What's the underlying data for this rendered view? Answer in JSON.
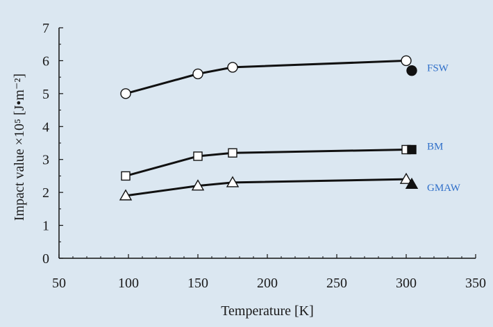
{
  "chart_data": {
    "type": "line",
    "title": "",
    "xlabel": "Temperature [K]",
    "ylabel": "Impact value ×10⁵ [J•m⁻²]",
    "xlim": [
      50,
      350
    ],
    "ylim": [
      0,
      7
    ],
    "xticks": [
      50,
      100,
      150,
      200,
      250,
      300,
      350
    ],
    "yticks": [
      0,
      1,
      2,
      3,
      4,
      5,
      6,
      7
    ],
    "grid": false,
    "colors": {
      "line": "#111111",
      "label": "#2f6fc9",
      "background": "#dbe7f1"
    },
    "series": [
      {
        "name": "FSW",
        "marker": "circle",
        "x": [
          98,
          150,
          175,
          300
        ],
        "y": [
          5.0,
          5.6,
          5.8,
          6.0
        ],
        "filled_point": {
          "x": 304,
          "y": 5.7
        }
      },
      {
        "name": "BM",
        "marker": "square",
        "x": [
          98,
          150,
          175,
          300
        ],
        "y": [
          2.5,
          3.1,
          3.2,
          3.3
        ],
        "filled_point": {
          "x": 304,
          "y": 3.3
        }
      },
      {
        "name": "GMAW",
        "marker": "triangle",
        "x": [
          98,
          150,
          175,
          300
        ],
        "y": [
          1.9,
          2.2,
          2.3,
          2.4
        ],
        "filled_point": {
          "x": 304,
          "y": 2.25
        }
      }
    ]
  }
}
